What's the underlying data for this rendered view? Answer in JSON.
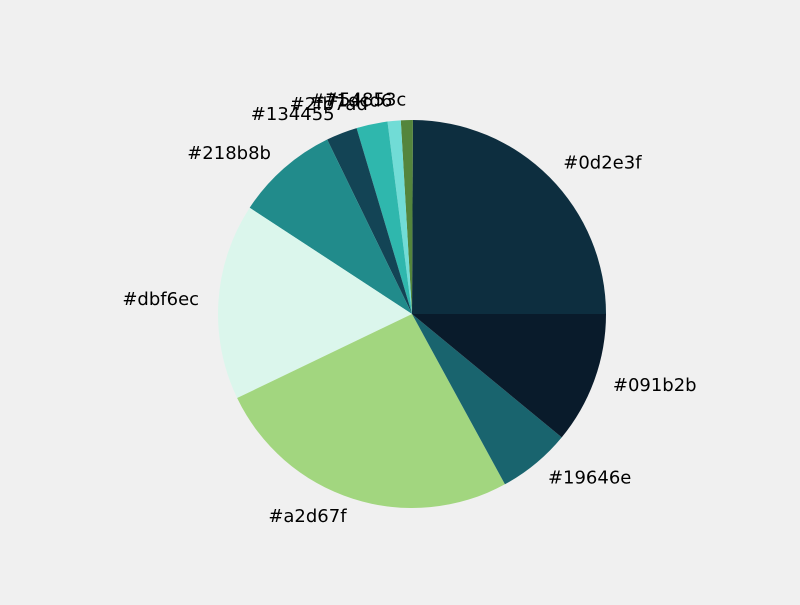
{
  "chart_data": {
    "type": "pie",
    "title": "",
    "slices": [
      {
        "label": "#0d2e3f",
        "value": 25.0,
        "color": "#0d2e3f"
      },
      {
        "label": "#54853c",
        "value": 1.0,
        "color": "#54853c"
      },
      {
        "label": "#71dcd6",
        "value": 1.1,
        "color": "#71dcd6"
      },
      {
        "label": "#2fb7ad",
        "value": 2.6,
        "color": "#2fb7ad"
      },
      {
        "label": "#134455",
        "value": 2.6,
        "color": "#134455"
      },
      {
        "label": "#218b8b",
        "value": 8.6,
        "color": "#218b8b"
      },
      {
        "label": "#dbf6ec",
        "value": 16.4,
        "color": "#dbf6ec"
      },
      {
        "label": "#a2d67f",
        "value": 25.9,
        "color": "#a2d67f"
      },
      {
        "label": "#19646e",
        "value": 6.1,
        "color": "#19646e"
      },
      {
        "label": "#091b2b",
        "value": 11.0,
        "color": "#091b2b"
      }
    ]
  }
}
